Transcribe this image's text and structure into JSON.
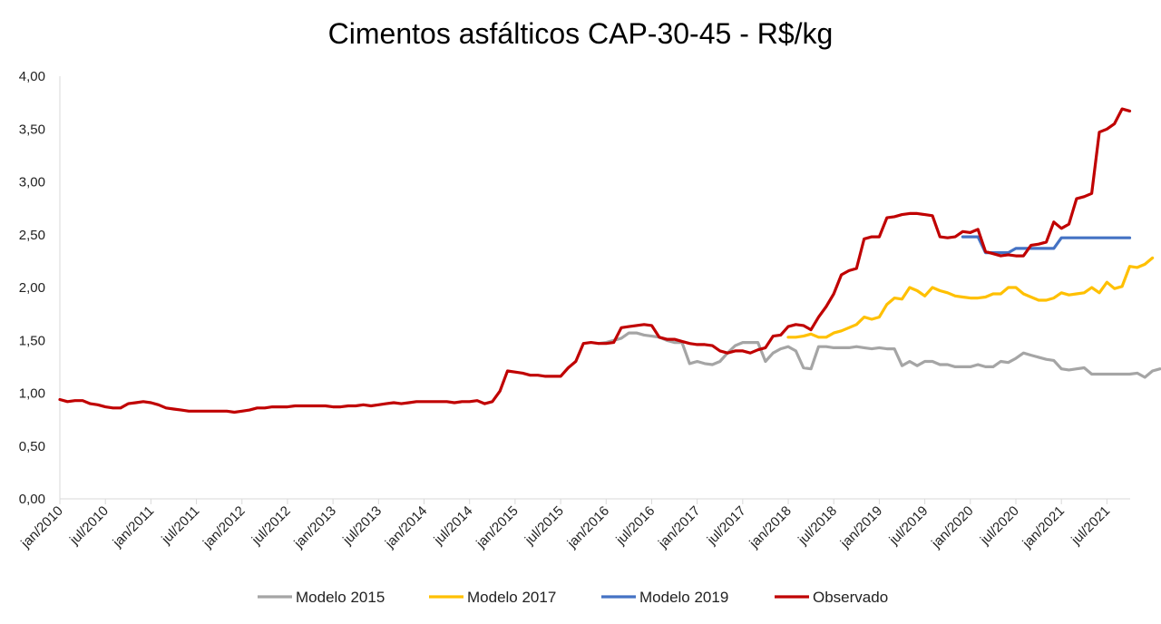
{
  "chart_data": {
    "type": "line",
    "title": "Cimentos asfálticos CAP-30-45 - R$/kg",
    "xlabel": "",
    "ylabel": "",
    "ylim": [
      0,
      4
    ],
    "yticks": [
      "0,00",
      "0,50",
      "1,00",
      "1,50",
      "2,00",
      "2,50",
      "3,00",
      "3,50",
      "4,00"
    ],
    "xticks": [
      "jan/2010",
      "jul/2010",
      "jan/2011",
      "jul/2011",
      "jan/2012",
      "jul/2012",
      "jan/2013",
      "jul/2013",
      "jan/2014",
      "jul/2014",
      "jan/2015",
      "jul/2015",
      "jan/2016",
      "jul/2016",
      "jan/2017",
      "jul/2017",
      "jan/2018",
      "jul/2018",
      "jan/2019",
      "jul/2019",
      "jan/2020",
      "jul/2020",
      "jan/2021",
      "jul/2021"
    ],
    "legend_position": "bottom",
    "grid": false,
    "series": [
      {
        "name": "Modelo 2015",
        "color": "#a5a5a5",
        "start": "dez/2015",
        "values": [
          1.47,
          1.48,
          1.5,
          1.52,
          1.57,
          1.57,
          1.55,
          1.54,
          1.53,
          1.5,
          1.48,
          1.48,
          1.28,
          1.3,
          1.28,
          1.27,
          1.3,
          1.38,
          1.45,
          1.48,
          1.48,
          1.48,
          1.3,
          1.38,
          1.42,
          1.44,
          1.4,
          1.24,
          1.23,
          1.44,
          1.44,
          1.43,
          1.43,
          1.43,
          1.44,
          1.43,
          1.42,
          1.43,
          1.42,
          1.42,
          1.26,
          1.3,
          1.26,
          1.3,
          1.3,
          1.27,
          1.27,
          1.25,
          1.25,
          1.25,
          1.27,
          1.25,
          1.25,
          1.3,
          1.29,
          1.33,
          1.38,
          1.36,
          1.34,
          1.32,
          1.31,
          1.23,
          1.22,
          1.23,
          1.24,
          1.18,
          1.18,
          1.18,
          1.18,
          1.18,
          1.18,
          1.19,
          1.15,
          1.21,
          1.23
        ]
      },
      {
        "name": "Modelo 2017",
        "color": "#ffc000",
        "start": "jan/2018",
        "values": [
          1.53,
          1.53,
          1.54,
          1.56,
          1.53,
          1.53,
          1.57,
          1.59,
          1.62,
          1.65,
          1.72,
          1.7,
          1.72,
          1.84,
          1.9,
          1.89,
          2.0,
          1.97,
          1.92,
          2.0,
          1.97,
          1.95,
          1.92,
          1.91,
          1.9,
          1.9,
          1.91,
          1.94,
          1.94,
          2.0,
          2.0,
          1.94,
          1.91,
          1.88,
          1.88,
          1.9,
          1.95,
          1.93,
          1.94,
          1.95,
          2.0,
          1.95,
          2.05,
          1.99,
          2.01,
          2.2,
          2.19,
          2.22,
          2.28
        ]
      },
      {
        "name": "Modelo 2019",
        "color": "#4472c4",
        "start": "dez/2019",
        "values": [
          2.48,
          2.48,
          2.48,
          2.33,
          2.33,
          2.33,
          2.33,
          2.37,
          2.37,
          2.37,
          2.37,
          2.37,
          2.37,
          2.47,
          2.47,
          2.47,
          2.47,
          2.47,
          2.47,
          2.47,
          2.47,
          2.47,
          2.47
        ]
      },
      {
        "name": "Observado",
        "color": "#c00000",
        "start": "jan/2010",
        "values": [
          0.94,
          0.92,
          0.93,
          0.93,
          0.9,
          0.89,
          0.87,
          0.86,
          0.86,
          0.9,
          0.91,
          0.92,
          0.91,
          0.89,
          0.86,
          0.85,
          0.84,
          0.83,
          0.83,
          0.83,
          0.83,
          0.83,
          0.83,
          0.82,
          0.83,
          0.84,
          0.86,
          0.86,
          0.87,
          0.87,
          0.87,
          0.88,
          0.88,
          0.88,
          0.88,
          0.88,
          0.87,
          0.87,
          0.88,
          0.88,
          0.89,
          0.88,
          0.89,
          0.9,
          0.91,
          0.9,
          0.91,
          0.92,
          0.92,
          0.92,
          0.92,
          0.92,
          0.91,
          0.92,
          0.92,
          0.93,
          0.9,
          0.92,
          1.02,
          1.21,
          1.2,
          1.19,
          1.17,
          1.17,
          1.16,
          1.16,
          1.16,
          1.24,
          1.3,
          1.47,
          1.48,
          1.47,
          1.47,
          1.48,
          1.62,
          1.63,
          1.64,
          1.65,
          1.64,
          1.53,
          1.51,
          1.51,
          1.49,
          1.47,
          1.46,
          1.46,
          1.45,
          1.4,
          1.38,
          1.4,
          1.4,
          1.38,
          1.41,
          1.43,
          1.54,
          1.55,
          1.63,
          1.65,
          1.64,
          1.6,
          1.72,
          1.82,
          1.94,
          2.12,
          2.16,
          2.18,
          2.46,
          2.48,
          2.48,
          2.66,
          2.67,
          2.69,
          2.7,
          2.7,
          2.69,
          2.68,
          2.48,
          2.47,
          2.48,
          2.53,
          2.52,
          2.55,
          2.34,
          2.32,
          2.3,
          2.31,
          2.3,
          2.3,
          2.4,
          2.41,
          2.43,
          2.62,
          2.56,
          2.6,
          2.84,
          2.86,
          2.89,
          3.47,
          3.5,
          3.55,
          3.69,
          3.67
        ]
      }
    ]
  }
}
